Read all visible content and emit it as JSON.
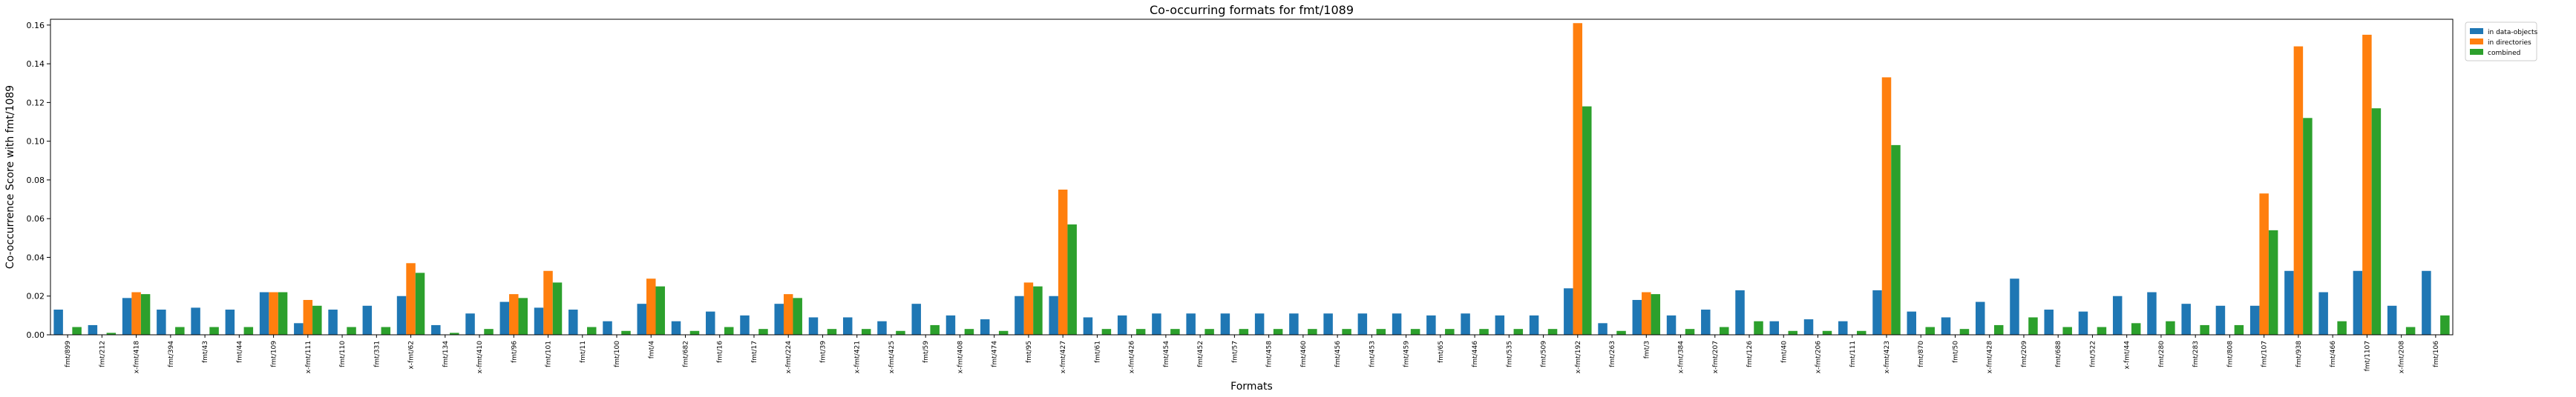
{
  "chart_data": {
    "type": "bar",
    "title": "Co-occurring formats for fmt/1089",
    "xlabel": "Formats",
    "ylabel": "Co-occurrence Score with fmt/1089",
    "ylim": [
      0,
      0.163
    ],
    "yticks": [
      "0.00",
      "0.02",
      "0.04",
      "0.06",
      "0.08",
      "0.10",
      "0.12",
      "0.14",
      "0.16"
    ],
    "ytick_values": [
      0,
      0.02,
      0.04,
      0.06,
      0.08,
      0.1,
      0.12,
      0.14,
      0.16
    ],
    "legend_position": "outside-top-right",
    "grid": false,
    "colors": {
      "in data-objects": "#1f77b4",
      "in directories": "#ff7f0e",
      "combined": "#2ca02c"
    },
    "categories": [
      "fmt/899",
      "fmt/212",
      "x-fmt/418",
      "fmt/394",
      "fmt/43",
      "fmt/44",
      "fmt/109",
      "x-fmt/111",
      "fmt/110",
      "fmt/331",
      "x-fmt/62",
      "fmt/134",
      "x-fmt/410",
      "fmt/96",
      "fmt/101",
      "fmt/11",
      "fmt/100",
      "fmt/4",
      "fmt/682",
      "fmt/16",
      "fmt/17",
      "x-fmt/224",
      "fmt/39",
      "x-fmt/421",
      "x-fmt/425",
      "fmt/59",
      "x-fmt/408",
      "fmt/474",
      "fmt/95",
      "x-fmt/427",
      "fmt/61",
      "x-fmt/426",
      "fmt/454",
      "fmt/452",
      "fmt/57",
      "fmt/458",
      "fmt/460",
      "fmt/456",
      "fmt/453",
      "fmt/459",
      "fmt/65",
      "fmt/446",
      "fmt/535",
      "fmt/509",
      "x-fmt/192",
      "fmt/263",
      "fmt/3",
      "x-fmt/384",
      "x-fmt/207",
      "fmt/126",
      "fmt/40",
      "x-fmt/206",
      "fmt/111",
      "x-fmt/423",
      "fmt/870",
      "fmt/50",
      "x-fmt/428",
      "fmt/209",
      "fmt/688",
      "fmt/522",
      "x-fmt/44",
      "fmt/280",
      "fmt/283",
      "fmt/808",
      "fmt/107",
      "fmt/938",
      "fmt/466",
      "fmt/1107",
      "x-fmt/208",
      "fmt/106"
    ],
    "series": [
      {
        "name": "in data-objects",
        "values": [
          0.013,
          0.005,
          0.019,
          0.013,
          0.014,
          0.013,
          0.022,
          0.006,
          0.013,
          0.015,
          0.02,
          0.005,
          0.011,
          0.017,
          0.014,
          0.013,
          0.007,
          0.016,
          0.007,
          0.012,
          0.01,
          0.016,
          0.009,
          0.009,
          0.007,
          0.016,
          0.01,
          0.008,
          0.02,
          0.02,
          0.009,
          0.01,
          0.011,
          0.011,
          0.011,
          0.011,
          0.011,
          0.011,
          0.011,
          0.011,
          0.01,
          0.011,
          0.01,
          0.01,
          0.024,
          0.006,
          0.018,
          0.01,
          0.013,
          0.023,
          0.007,
          0.008,
          0.007,
          0.023,
          0.012,
          0.009,
          0.017,
          0.029,
          0.013,
          0.012,
          0.02,
          0.022,
          0.016,
          0.015,
          0.015,
          0.033,
          0.022,
          0.033,
          0.015,
          0.033
        ]
      },
      {
        "name": "in directories",
        "values": [
          0,
          0,
          0.022,
          0,
          0,
          0,
          0.022,
          0.018,
          0,
          0,
          0.037,
          0,
          0,
          0.021,
          0.033,
          0,
          0,
          0.029,
          0,
          0,
          0,
          0.021,
          0,
          0,
          0,
          0,
          0,
          0,
          0.027,
          0.075,
          0,
          0,
          0,
          0,
          0,
          0,
          0,
          0,
          0,
          0,
          0,
          0,
          0,
          0,
          0.161,
          0,
          0.022,
          0,
          0,
          0,
          0,
          0,
          0,
          0.133,
          0,
          0,
          0,
          0,
          0,
          0,
          0,
          0,
          0,
          0,
          0.073,
          0.149,
          0,
          0.155,
          0,
          0
        ]
      },
      {
        "name": "combined",
        "values": [
          0.004,
          0.001,
          0.021,
          0.004,
          0.004,
          0.004,
          0.022,
          0.015,
          0.004,
          0.004,
          0.032,
          0.001,
          0.003,
          0.019,
          0.027,
          0.004,
          0.002,
          0.025,
          0.002,
          0.004,
          0.003,
          0.019,
          0.003,
          0.003,
          0.002,
          0.005,
          0.003,
          0.002,
          0.025,
          0.057,
          0.003,
          0.003,
          0.003,
          0.003,
          0.003,
          0.003,
          0.003,
          0.003,
          0.003,
          0.003,
          0.003,
          0.003,
          0.003,
          0.003,
          0.118,
          0.002,
          0.021,
          0.003,
          0.004,
          0.007,
          0.002,
          0.002,
          0.002,
          0.098,
          0.004,
          0.003,
          0.005,
          0.009,
          0.004,
          0.004,
          0.006,
          0.007,
          0.005,
          0.005,
          0.054,
          0.112,
          0.007,
          0.117,
          0.004,
          0.01
        ]
      }
    ]
  }
}
